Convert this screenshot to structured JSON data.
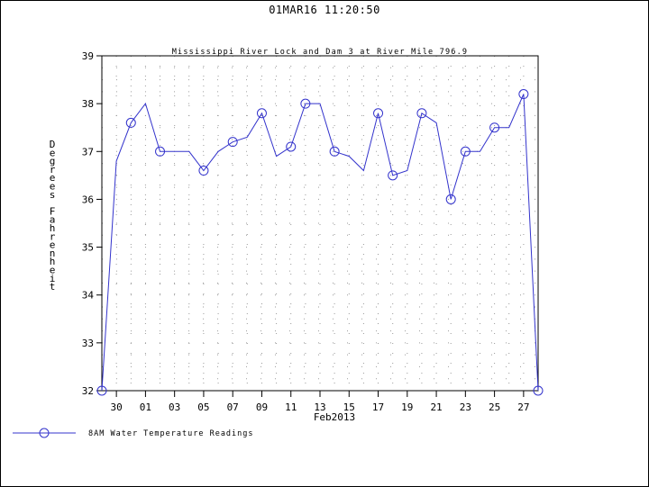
{
  "header": {
    "timestamp": "01MAR16  11:20:50"
  },
  "colors": {
    "series": "#3333cc",
    "grid": "#9a9a9a",
    "axis": "#000000"
  },
  "chart_data": {
    "type": "line",
    "title": "Mississippi River Lock and Dam 3 at River Mile 796.9",
    "ylabel": "Degrees Fahrenheit",
    "xlabel": "Feb2013",
    "ylim": [
      32,
      39
    ],
    "yticks": [
      "32",
      "33",
      "34",
      "35",
      "36",
      "37",
      "38",
      "39"
    ],
    "xlim": [
      "2013-01-29",
      "2013-02-28"
    ],
    "xtick_dates": [
      "2013-01-30",
      "2013-02-01",
      "2013-02-03",
      "2013-02-05",
      "2013-02-07",
      "2013-02-09",
      "2013-02-11",
      "2013-02-13",
      "2013-02-15",
      "2013-02-17",
      "2013-02-19",
      "2013-02-21",
      "2013-02-23",
      "2013-02-25",
      "2013-02-27"
    ],
    "xtick_labels": [
      "30",
      "01",
      "03",
      "05",
      "07",
      "09",
      "11",
      "13",
      "15",
      "17",
      "19",
      "21",
      "23",
      "25",
      "27"
    ],
    "grid": true,
    "legend_position": "bottom-left",
    "series": [
      {
        "name": "8AM Water Temperature Readings",
        "x": [
          "2013-01-29",
          "2013-01-30",
          "2013-01-31",
          "2013-02-01",
          "2013-02-02",
          "2013-02-03",
          "2013-02-04",
          "2013-02-05",
          "2013-02-06",
          "2013-02-07",
          "2013-02-08",
          "2013-02-09",
          "2013-02-10",
          "2013-02-11",
          "2013-02-12",
          "2013-02-13",
          "2013-02-14",
          "2013-02-15",
          "2013-02-16",
          "2013-02-17",
          "2013-02-18",
          "2013-02-19",
          "2013-02-20",
          "2013-02-21",
          "2013-02-22",
          "2013-02-23",
          "2013-02-24",
          "2013-02-25",
          "2013-02-26",
          "2013-02-27",
          "2013-02-28"
        ],
        "y": [
          32.0,
          36.8,
          37.6,
          38.0,
          37.0,
          37.0,
          37.0,
          36.6,
          37.0,
          37.2,
          37.3,
          37.8,
          36.9,
          37.1,
          38.0,
          38.0,
          37.0,
          36.9,
          36.6,
          37.8,
          36.5,
          36.6,
          37.8,
          37.6,
          36.0,
          37.0,
          37.0,
          37.5,
          37.5,
          38.2,
          32.0
        ],
        "markers_at": [
          "2013-01-29",
          "2013-01-31",
          "2013-02-02",
          "2013-02-05",
          "2013-02-07",
          "2013-02-09",
          "2013-02-11",
          "2013-02-12",
          "2013-02-14",
          "2013-02-17",
          "2013-02-18",
          "2013-02-20",
          "2013-02-22",
          "2013-02-23",
          "2013-02-25",
          "2013-02-27",
          "2013-02-28"
        ]
      }
    ]
  }
}
